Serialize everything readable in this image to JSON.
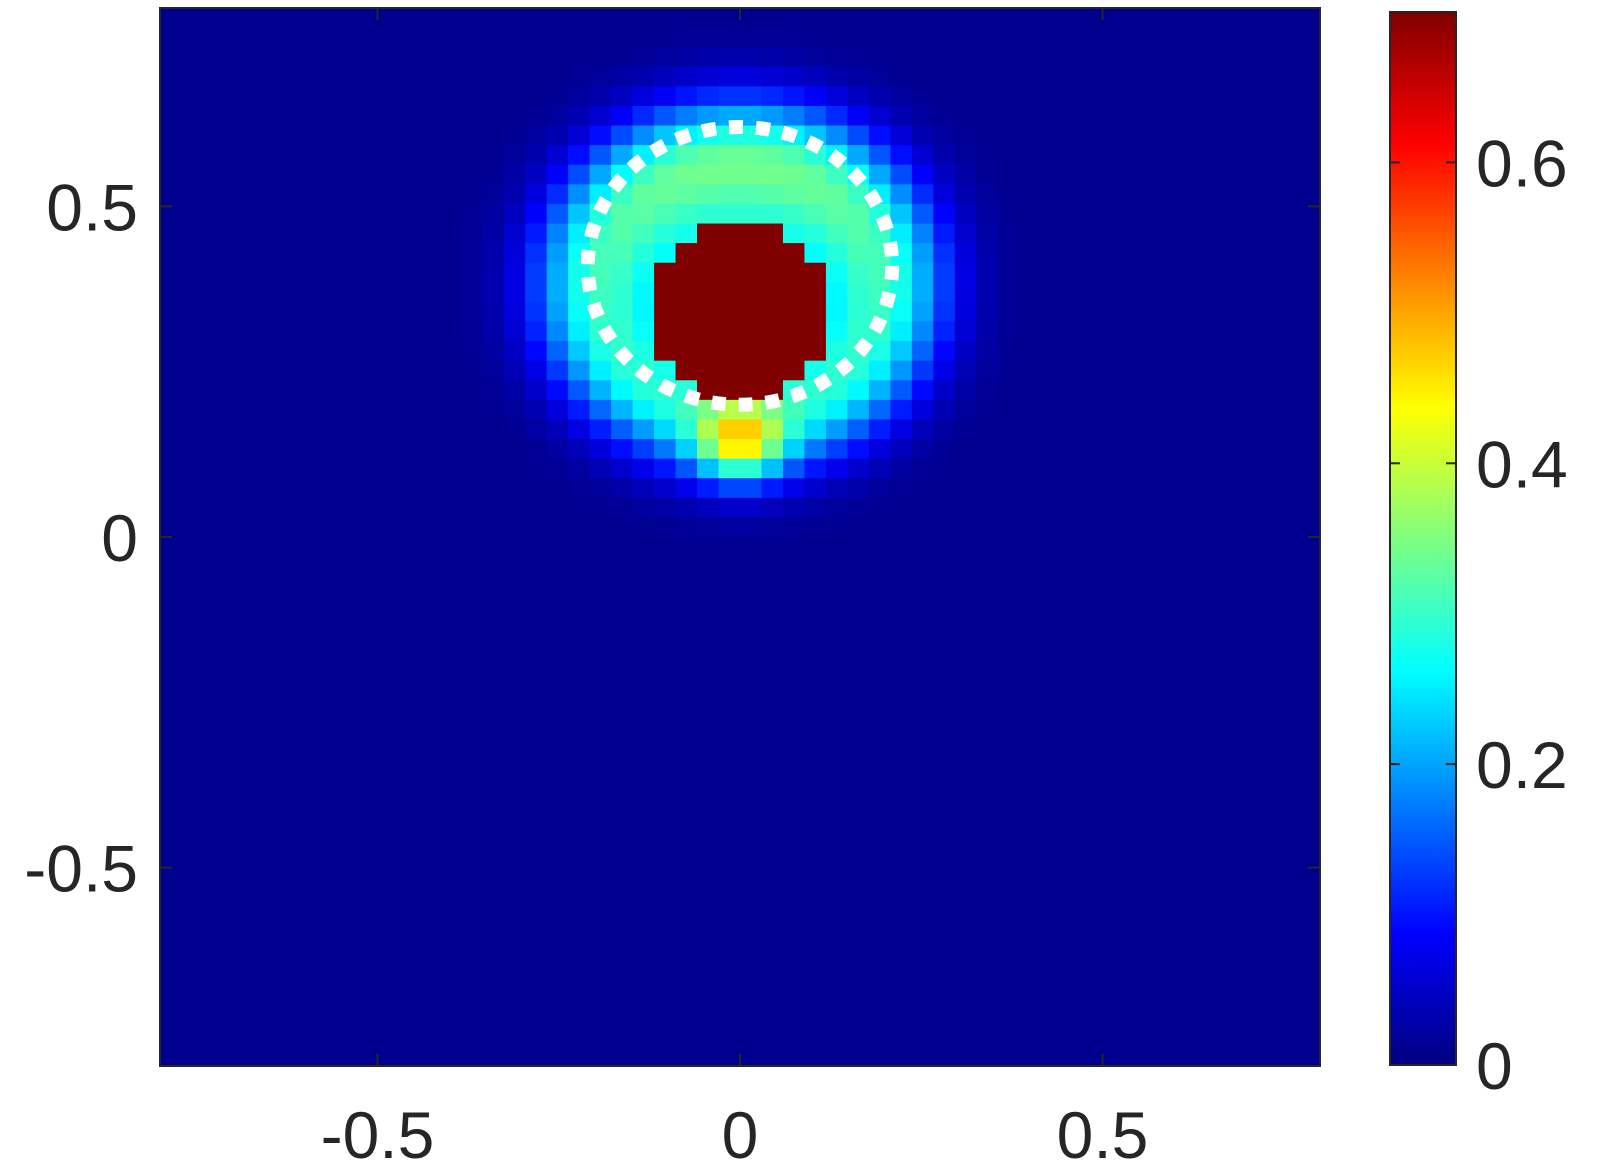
{
  "chart_data": {
    "type": "heatmap",
    "title": "",
    "xlabel": "",
    "ylabel": "",
    "xlim": [
      -0.8,
      0.8
    ],
    "ylim": [
      -0.8,
      0.8
    ],
    "x_ticks": [
      {
        "value": -0.5,
        "label": "-0.5"
      },
      {
        "value": 0,
        "label": "0"
      },
      {
        "value": 0.5,
        "label": "0.5"
      }
    ],
    "y_ticks": [
      {
        "value": 0.5,
        "label": "0.5"
      },
      {
        "value": 0,
        "label": "0"
      },
      {
        "value": -0.5,
        "label": "-0.5"
      }
    ],
    "colormap": "jet",
    "clim": [
      0,
      0.7
    ],
    "colorbar_ticks": [
      {
        "value": 0,
        "label": "0"
      },
      {
        "value": 0.2,
        "label": "0.2"
      },
      {
        "value": 0.4,
        "label": "0.4"
      },
      {
        "value": 0.6,
        "label": "0.6"
      }
    ],
    "background_value": 0.01,
    "grid": false,
    "field_components": [
      {
        "kind": "gaussian_ring",
        "center": [
          0.0,
          0.38
        ],
        "radius": 0.2,
        "width": 0.09,
        "peak": 0.26
      },
      {
        "kind": "gaussian_blob",
        "center": [
          0.0,
          0.41
        ],
        "sigma": 0.1,
        "peak": 0.26
      },
      {
        "kind": "flat_core",
        "center": [
          0.0,
          0.34
        ],
        "radius": 0.13,
        "value": 0.7
      },
      {
        "kind": "gaussian_blob",
        "center": [
          0.0,
          0.14
        ],
        "sigma": 0.04,
        "peak": 0.25
      }
    ],
    "annotation": {
      "type": "dotted_circle",
      "color": "#ffffff",
      "center": [
        0.0,
        0.41
      ],
      "radius": 0.21
    }
  }
}
